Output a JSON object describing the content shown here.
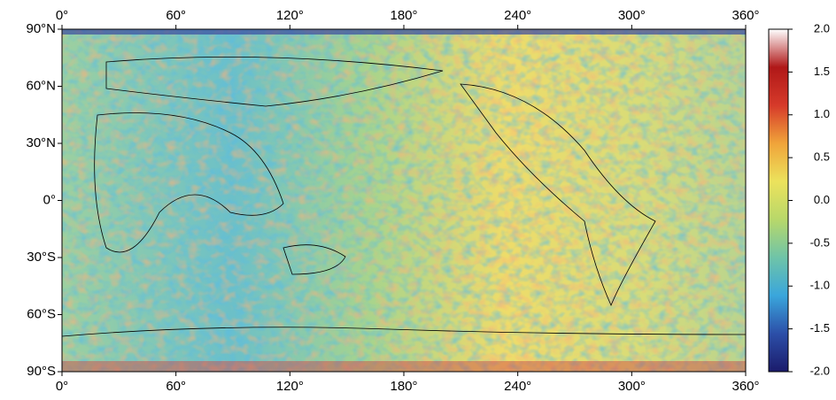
{
  "map": {
    "xlim": [
      0,
      360
    ],
    "ylim": [
      -90,
      90
    ],
    "xticks": [
      {
        "value": 0,
        "label": "0°"
      },
      {
        "value": 60,
        "label": "60°"
      },
      {
        "value": 120,
        "label": "120°"
      },
      {
        "value": 180,
        "label": "180°"
      },
      {
        "value": 240,
        "label": "240°"
      },
      {
        "value": 300,
        "label": "300°"
      },
      {
        "value": 360,
        "label": "360°"
      }
    ],
    "yticks": [
      {
        "value": 90,
        "label": "90°N"
      },
      {
        "value": 60,
        "label": "60°N"
      },
      {
        "value": 30,
        "label": "30°N"
      },
      {
        "value": 0,
        "label": "0°"
      },
      {
        "value": -30,
        "label": "30°S"
      },
      {
        "value": -60,
        "label": "60°S"
      },
      {
        "value": -90,
        "label": "90°S"
      }
    ],
    "colorbar": {
      "lim": [
        -2,
        2
      ],
      "ticks": [
        {
          "value": 2,
          "label": "2.0"
        },
        {
          "value": 1.5,
          "label": "1.5"
        },
        {
          "value": 1,
          "label": "1.0"
        },
        {
          "value": 0.5,
          "label": "0.5"
        },
        {
          "value": 0,
          "label": "0.0"
        },
        {
          "value": -0.5,
          "label": "-0.5"
        },
        {
          "value": -1,
          "label": "-1.0"
        },
        {
          "value": -1.5,
          "label": "-1.5"
        },
        {
          "value": -2,
          "label": "-2.0"
        }
      ],
      "colors": [
        "#1b1b6b",
        "#2c4fa8",
        "#3aa6dc",
        "#6fc4a8",
        "#b8d86a",
        "#ece25c",
        "#f0a43a",
        "#d63a2a",
        "#b01818",
        "#ffffff"
      ]
    }
  }
}
